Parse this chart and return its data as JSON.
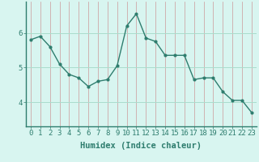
{
  "x": [
    0,
    1,
    2,
    3,
    4,
    5,
    6,
    7,
    8,
    9,
    10,
    11,
    12,
    13,
    14,
    15,
    16,
    17,
    18,
    19,
    20,
    21,
    22,
    23
  ],
  "y": [
    5.8,
    5.9,
    5.6,
    5.1,
    4.8,
    4.7,
    4.45,
    4.6,
    4.65,
    5.05,
    6.2,
    6.55,
    5.85,
    5.75,
    5.35,
    5.35,
    5.35,
    4.65,
    4.7,
    4.7,
    4.3,
    4.05,
    4.05,
    3.7
  ],
  "line_color": "#2e7d6e",
  "marker": "o",
  "marker_size": 2,
  "linewidth": 1.0,
  "bg_color": "#d8f5f0",
  "grid_color_v": "#cc9999",
  "grid_color_h": "#aaddcc",
  "xlabel": "Humidex (Indice chaleur)",
  "xlabel_fontsize": 7.5,
  "tick_fontsize": 6.5,
  "yticks": [
    4,
    5,
    6
  ],
  "ylim": [
    3.3,
    6.9
  ],
  "xlim": [
    -0.5,
    23.5
  ],
  "xticks": [
    0,
    1,
    2,
    3,
    4,
    5,
    6,
    7,
    8,
    9,
    10,
    11,
    12,
    13,
    14,
    15,
    16,
    17,
    18,
    19,
    20,
    21,
    22,
    23
  ]
}
